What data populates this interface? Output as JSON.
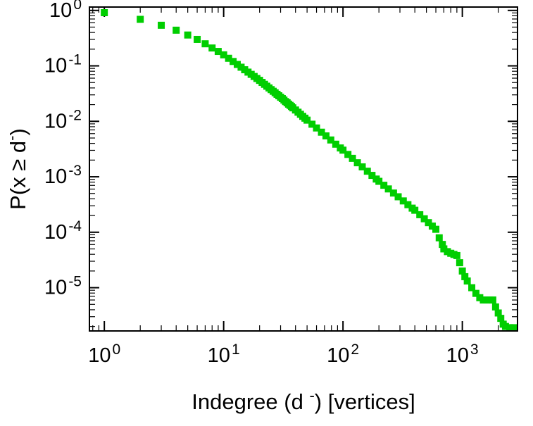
{
  "chart_data": {
    "type": "scatter",
    "title": "",
    "x_scale": "log",
    "y_scale": "log",
    "xlabel": {
      "pre": "Indegree (d ",
      "sup": "-",
      "post": ") [vertices]"
    },
    "ylabel": {
      "pre": "P(x ≥ d",
      "sup": "-",
      "post": ")"
    },
    "x_tick_exponents": [
      0,
      1,
      2,
      3
    ],
    "y_tick_exponents": [
      0,
      -1,
      -2,
      -3,
      -4,
      -5
    ],
    "xlim": [
      0.75,
      2900
    ],
    "ylim": [
      1.66e-06,
      1.15
    ],
    "grid": false,
    "legend": "none",
    "marker": {
      "shape": "square",
      "size": 10,
      "color": "#00ce00"
    },
    "axis_color": "#000000",
    "background": "#ffffff",
    "points": [
      [
        1,
        0.91
      ],
      [
        2,
        0.69
      ],
      [
        3,
        0.54
      ],
      [
        4,
        0.44
      ],
      [
        5,
        0.36
      ],
      [
        6,
        0.3
      ],
      [
        7,
        0.25
      ],
      [
        8,
        0.21
      ],
      [
        9,
        0.182
      ],
      [
        10,
        0.158
      ],
      [
        11,
        0.137
      ],
      [
        12,
        0.12
      ],
      [
        13,
        0.106
      ],
      [
        14,
        0.0946
      ],
      [
        15,
        0.0851
      ],
      [
        16,
        0.0771
      ],
      [
        17,
        0.0703
      ],
      [
        18,
        0.0644
      ],
      [
        19,
        0.0592
      ],
      [
        20,
        0.0548
      ],
      [
        21,
        0.0503
      ],
      [
        22,
        0.0465
      ],
      [
        23,
        0.043
      ],
      [
        24,
        0.04
      ],
      [
        25,
        0.0373
      ],
      [
        26,
        0.0348
      ],
      [
        27,
        0.0327
      ],
      [
        28,
        0.0307
      ],
      [
        29,
        0.0289
      ],
      [
        30,
        0.0272
      ],
      [
        31,
        0.0257
      ],
      [
        32,
        0.0242
      ],
      [
        33,
        0.0227
      ],
      [
        34,
        0.0216
      ],
      [
        35,
        0.0204
      ],
      [
        36,
        0.0194
      ],
      [
        37,
        0.0185
      ],
      [
        38,
        0.0175
      ],
      [
        40,
        0.016
      ],
      [
        42,
        0.0146
      ],
      [
        44,
        0.0134
      ],
      [
        46,
        0.0123
      ],
      [
        48,
        0.0114
      ],
      [
        50,
        0.0105
      ],
      [
        55,
        0.00887
      ],
      [
        60,
        0.00759
      ],
      [
        66,
        0.00637
      ],
      [
        72,
        0.00546
      ],
      [
        79,
        0.00461
      ],
      [
        87,
        0.00387
      ],
      [
        95,
        0.00331
      ],
      [
        100,
        0.00302
      ],
      [
        110,
        0.00253
      ],
      [
        120,
        0.00215
      ],
      [
        132,
        0.00179
      ],
      [
        145,
        0.00151
      ],
      [
        160,
        0.00126
      ],
      [
        175,
        0.00106
      ],
      [
        190,
        0.00091
      ],
      [
        200,
        0.000828
      ],
      [
        220,
        0.000703
      ],
      [
        240,
        0.000604
      ],
      [
        265,
        0.000509
      ],
      [
        290,
        0.000436
      ],
      [
        320,
        0.000367
      ],
      [
        350,
        0.000314
      ],
      [
        380,
        0.000272
      ],
      [
        400,
        0.000249
      ],
      [
        440,
        0.000207
      ],
      [
        480,
        0.000175
      ],
      [
        520,
        0.000149
      ],
      [
        560,
        0.000129
      ],
      [
        600,
        0.000113
      ],
      [
        640,
        7.94e-05
      ],
      [
        680,
        6.03e-05
      ],
      [
        700,
        5.01e-05
      ],
      [
        750,
        4.47e-05
      ],
      [
        800,
        4.17e-05
      ],
      [
        850,
        3.98e-05
      ],
      [
        900,
        3.8e-05
      ],
      [
        950,
        2.82e-05
      ],
      [
        1000,
        2e-05
      ],
      [
        1050,
        1.58e-05
      ],
      [
        1100,
        1.32e-05
      ],
      [
        1200,
        1e-05
      ],
      [
        1300,
        7.9e-06
      ],
      [
        1400,
        6.6e-06
      ],
      [
        1500,
        6e-06
      ],
      [
        1600,
        6e-06
      ],
      [
        1700,
        6e-06
      ],
      [
        1800,
        6e-06
      ],
      [
        1900,
        4.5e-06
      ],
      [
        2000,
        3.5e-06
      ],
      [
        2100,
        2.8e-06
      ],
      [
        2200,
        2.2e-06
      ],
      [
        2300,
        2e-06
      ],
      [
        2500,
        1.9e-06
      ],
      [
        2700,
        1.9e-06
      ]
    ]
  }
}
